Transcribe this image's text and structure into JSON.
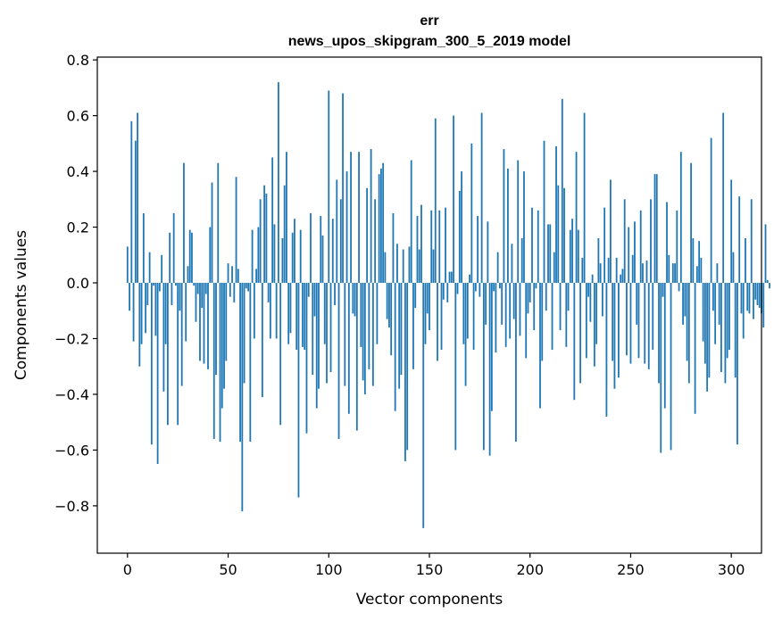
{
  "chart_data": {
    "type": "bar",
    "title": "err",
    "subtitle": "news_upos_skipgram_300_5_2019 model",
    "xlabel": "Vector components",
    "ylabel": "Components values",
    "xlim": [
      -15,
      315
    ],
    "ylim": [
      -0.97,
      0.81
    ],
    "x_ticks": [
      0,
      50,
      100,
      150,
      200,
      250,
      300
    ],
    "y_ticks": [
      -0.8,
      -0.6,
      -0.4,
      -0.2,
      0.0,
      0.2,
      0.4,
      0.6,
      0.8
    ],
    "y_tick_labels": [
      "−0.8",
      "−0.6",
      "−0.4",
      "−0.2",
      "0.0",
      "0.2",
      "0.4",
      "0.6",
      "0.8"
    ],
    "bar_color": "#1f77b4",
    "grid": false,
    "values": [
      0.13,
      -0.1,
      0.58,
      -0.21,
      0.51,
      0.61,
      -0.3,
      -0.22,
      0.25,
      -0.18,
      -0.08,
      0.11,
      -0.58,
      -0.01,
      -0.19,
      -0.65,
      -0.03,
      0.1,
      -0.39,
      -0.22,
      -0.51,
      0.18,
      -0.08,
      0.25,
      -0.01,
      -0.51,
      -0.1,
      -0.37,
      0.43,
      -0.21,
      0.06,
      0.19,
      0.18,
      -0.01,
      -0.14,
      -0.04,
      -0.28,
      -0.09,
      -0.29,
      -0.04,
      -0.31,
      0.2,
      0.36,
      -0.56,
      -0.33,
      0.43,
      -0.57,
      -0.45,
      -0.38,
      -0.28,
      0.07,
      -0.05,
      0.06,
      -0.07,
      0.38,
      0.05,
      -0.57,
      -0.82,
      -0.36,
      -0.02,
      -0.03,
      -0.57,
      0.19,
      -0.2,
      0.05,
      0.2,
      0.3,
      -0.41,
      0.35,
      0.32,
      -0.07,
      -0.2,
      0.45,
      0.21,
      -0.2,
      0.72,
      -0.51,
      0.16,
      0.35,
      0.47,
      -0.22,
      -0.18,
      0.18,
      0.23,
      -0.24,
      -0.77,
      0.19,
      -0.23,
      -0.24,
      -0.54,
      -0.05,
      0.25,
      -0.33,
      -0.12,
      -0.45,
      -0.38,
      0.24,
      0.17,
      -0.22,
      -0.36,
      0.69,
      -0.32,
      0.23,
      -0.08,
      0.37,
      -0.56,
      0.3,
      0.68,
      -0.37,
      0.4,
      -0.47,
      0.47,
      -0.11,
      -0.12,
      -0.53,
      0.47,
      -0.23,
      -0.35,
      -0.4,
      0.34,
      -0.31,
      0.48,
      -0.37,
      0.3,
      -0.22,
      0.39,
      0.41,
      0.43,
      0.11,
      -0.13,
      -0.16,
      -0.26,
      0.25,
      -0.46,
      0.14,
      -0.38,
      -0.33,
      0.12,
      -0.64,
      -0.6,
      0.13,
      0.44,
      -0.31,
      -0.09,
      0.24,
      0.12,
      0.28,
      -0.88,
      -0.22,
      -0.11,
      -0.17,
      0.26,
      0.12,
      0.59,
      -0.28,
      0.26,
      -0.24,
      -0.06,
      0.27,
      -0.07,
      0.04,
      0.04,
      0.6,
      -0.6,
      -0.04,
      0.33,
      0.4,
      -0.22,
      -0.37,
      -0.2,
      0.03,
      0.5,
      -0.24,
      -0.03,
      0.24,
      -0.05,
      0.61,
      -0.6,
      -0.15,
      0.22,
      -0.62,
      -0.46,
      -0.03,
      -0.25,
      0.11,
      -0.02,
      -0.15,
      0.48,
      -0.23,
      0.41,
      -0.2,
      0.14,
      -0.13,
      -0.57,
      0.44,
      -0.19,
      0.16,
      0.4,
      -0.27,
      -0.11,
      -0.07,
      0.27,
      -0.17,
      -0.02,
      0.26,
      -0.45,
      -0.28,
      0.51,
      -0.1,
      0.21,
      0.21,
      -0.24,
      0.11,
      0.49,
      0.35,
      -0.17,
      0.66,
      0.34,
      -0.23,
      -0.1,
      0.19,
      0.23,
      -0.42,
      0.47,
      0.19,
      -0.36,
      0.09,
      0.61,
      -0.27,
      -0.05,
      -0.14,
      0.03,
      -0.3,
      -0.22,
      0.16,
      0.07,
      -0.12,
      0.27,
      -0.48,
      0.09,
      0.37,
      -0.28,
      -0.38,
      0.09,
      -0.34,
      0.03,
      0.05,
      0.3,
      -0.26,
      0.2,
      -0.29,
      0.1,
      0.22,
      -0.15,
      -0.27,
      0.26,
      0.07,
      -0.29,
      0.08,
      -0.31,
      0.3,
      -0.24,
      0.39,
      0.39,
      -0.36,
      -0.61,
      -0.05,
      -0.45,
      0.29,
      0.1,
      -0.6,
      0.07,
      0.07,
      0.26,
      -0.03,
      0.47,
      -0.15,
      -0.12,
      -0.28,
      -0.36,
      0.43,
      0.16,
      -0.47,
      0.06,
      0.15,
      0.09,
      -0.21,
      -0.29,
      -0.39,
      -0.34,
      0.52,
      -0.1,
      -0.22,
      0.07,
      -0.15,
      -0.32,
      0.61,
      -0.36,
      -0.27,
      -0.24,
      0.37,
      0.11,
      -0.34,
      -0.58,
      0.31,
      -0.11,
      -0.2,
      0.16,
      -0.1,
      -0.11,
      0.3,
      -0.13,
      -0.06,
      -0.08,
      -0.09,
      -0.11,
      -0.16,
      0.21,
      0.01,
      -0.02
    ]
  }
}
